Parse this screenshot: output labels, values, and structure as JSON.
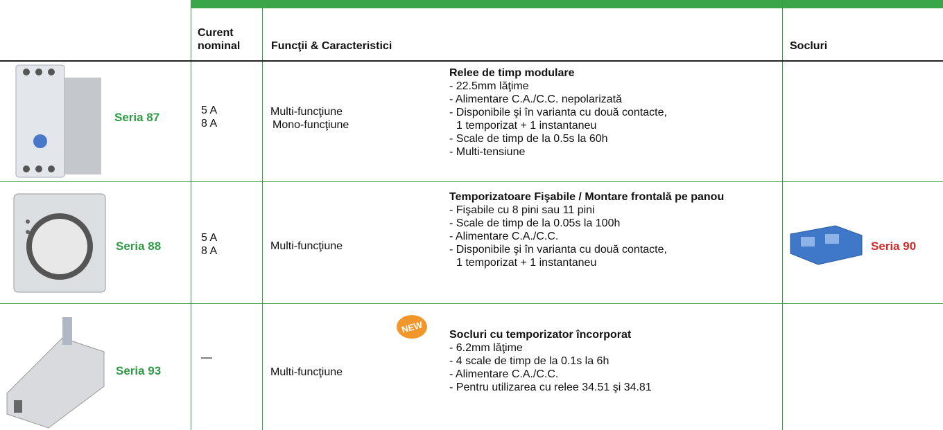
{
  "header": {
    "columns": [
      "Curent nominal",
      "Funcţii & Caracteristici",
      "Socluri"
    ]
  },
  "rows": [
    {
      "series": "Seria 87",
      "currents": [
        "5 A",
        "8 A"
      ],
      "functions": [
        "Multi-funcţiune",
        "Mono-funcţiune"
      ],
      "title": "Relee de timp modulare",
      "features": [
        "- 22.5mm lăţime",
        "- Alimentare C.A./C.C. nepolarizată",
        "- Disponibile şi în varianta cu două contacte,",
        "1 temporizat + 1 instantaneu",
        "- Scale de timp de la 0.5s la 60h",
        "- Multi-tensiune"
      ]
    },
    {
      "series": "Seria 88",
      "currents": [
        "5 A",
        "8 A"
      ],
      "functions": [
        "Multi-funcţiune"
      ],
      "title": "Temporizatoare Fişabile / Montare frontală pe panou",
      "features": [
        "- Fişabile cu 8 pini sau 11 pini",
        "- Scale de timp de la 0.05s la 100h",
        "- Alimentare C.A./C.C.",
        "- Disponibile şi în varianta cu două contacte,",
        "1 temporizat + 1 instantaneu"
      ],
      "socket": "Seria 90"
    },
    {
      "series": "Seria 93",
      "currents": [
        "—"
      ],
      "functions": [
        "Multi-funcţiune"
      ],
      "badge": "NEW",
      "title": "Socluri cu temporizator încorporat",
      "features": [
        "- 6.2mm lăţime",
        "- 4 scale de timp de la 0.1s la 6h",
        "- Alimentare C.A./C.C.",
        "- Pentru utilizarea cu relee 34.51 şi 34.81"
      ]
    }
  ]
}
